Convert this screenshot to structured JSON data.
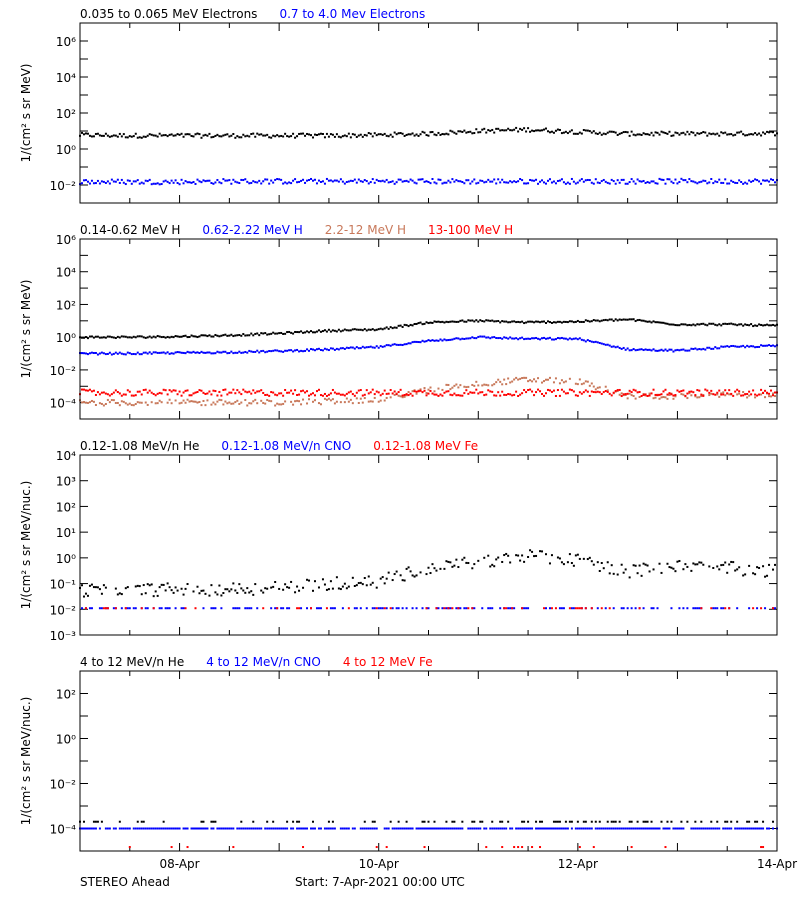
{
  "footer": {
    "left": "STEREO Ahead",
    "start": "Start:  7-Apr-2021 00:00 UTC"
  },
  "chart_data": [
    {
      "type": "scatter",
      "legend": [
        {
          "name": "0.035 to 0.065 MeV Electrons",
          "color": "#000000"
        },
        {
          "name": "0.7 to 4.0 Mev Electrons",
          "color": "#0000ff"
        }
      ],
      "ylabel": "1/(cm² s sr MeV)",
      "yscale": "log",
      "ylim": [
        0.001,
        10000000
      ],
      "ytick_labels": [
        "10⁶",
        "10⁴",
        "10²",
        "10⁰",
        "10⁻²"
      ],
      "xlim": [
        "2021-04-07 00:00",
        "2021-04-14 00:00"
      ],
      "x": [
        "2021-04-07 00:00",
        "2021-04-07 12:00",
        "2021-04-08 00:00",
        "2021-04-08 12:00",
        "2021-04-09 00:00",
        "2021-04-09 12:00",
        "2021-04-10 00:00",
        "2021-04-10 12:00",
        "2021-04-11 00:00",
        "2021-04-11 12:00",
        "2021-04-12 00:00",
        "2021-04-12 12:00",
        "2021-04-13 00:00",
        "2021-04-13 12:00",
        "2021-04-14 00:00"
      ],
      "series": [
        {
          "name": "0.035 to 0.065 MeV Electrons",
          "values": [
            6,
            5.5,
            5.5,
            5.5,
            5.5,
            5.5,
            6,
            7,
            10,
            12,
            9,
            7,
            7,
            7,
            7.5
          ]
        },
        {
          "name": "0.7 to 4.0 Mev Electrons",
          "values": [
            0.015,
            0.015,
            0.015,
            0.016,
            0.016,
            0.016,
            0.016,
            0.016,
            0.016,
            0.016,
            0.016,
            0.016,
            0.016,
            0.016,
            0.016
          ]
        }
      ]
    },
    {
      "type": "scatter",
      "legend": [
        {
          "name": "0.14-0.62 MeV H",
          "color": "#000000"
        },
        {
          "name": "0.62-2.22 MeV H",
          "color": "#0000ff"
        },
        {
          "name": "2.2-12 MeV H",
          "color": "#c8785a"
        },
        {
          "name": "13-100 MeV H",
          "color": "#ff0000"
        }
      ],
      "ylabel": "1/(cm² s sr MeV)",
      "yscale": "log",
      "ylim": [
        1e-05,
        1000000
      ],
      "ytick_labels": [
        "10⁶",
        "10⁴",
        "10²",
        "10⁰",
        "10⁻²",
        "10⁻⁴"
      ],
      "xlim": [
        "2021-04-07 00:00",
        "2021-04-14 00:00"
      ],
      "x": [
        "2021-04-07 00:00",
        "2021-04-07 12:00",
        "2021-04-08 00:00",
        "2021-04-08 12:00",
        "2021-04-09 00:00",
        "2021-04-09 12:00",
        "2021-04-10 00:00",
        "2021-04-10 12:00",
        "2021-04-11 00:00",
        "2021-04-11 12:00",
        "2021-04-12 00:00",
        "2021-04-12 12:00",
        "2021-04-13 00:00",
        "2021-04-13 12:00",
        "2021-04-14 00:00"
      ],
      "series": [
        {
          "name": "0.14-0.62 MeV H",
          "values": [
            1,
            1,
            1.1,
            1.3,
            1.7,
            2.5,
            3,
            8,
            10,
            8,
            9,
            12,
            6,
            6,
            5
          ]
        },
        {
          "name": "0.62-2.22 MeV H",
          "values": [
            0.1,
            0.1,
            0.11,
            0.12,
            0.14,
            0.18,
            0.25,
            0.6,
            1.0,
            0.8,
            0.8,
            0.18,
            0.15,
            0.25,
            0.3
          ]
        },
        {
          "name": "2.2-12 MeV H",
          "values": [
            0.0001,
            0.0001,
            0.0001,
            0.0001,
            0.0001,
            0.00012,
            0.00015,
            0.0006,
            0.0015,
            0.0025,
            0.002,
            0.00025,
            0.00025,
            0.0003,
            0.0003
          ]
        },
        {
          "name": "13-100 MeV H",
          "values": [
            0.0004,
            0.0004,
            0.0004,
            0.0004,
            0.0004,
            0.0004,
            0.0004,
            0.0004,
            0.0004,
            0.0004,
            0.0004,
            0.0004,
            0.0004,
            0.0004,
            0.0004
          ]
        }
      ]
    },
    {
      "type": "scatter",
      "legend": [
        {
          "name": "0.12-1.08 MeV/n He",
          "color": "#000000"
        },
        {
          "name": "0.12-1.08 MeV/n CNO",
          "color": "#0000ff"
        },
        {
          "name": "0.12-1.08 MeV Fe",
          "color": "#ff0000"
        }
      ],
      "ylabel": "1/(cm² s sr MeV/nuc.)",
      "yscale": "log",
      "ylim": [
        0.001,
        10000
      ],
      "ytick_labels": [
        "10⁴",
        "10³",
        "10²",
        "10¹",
        "10⁰",
        "10⁻¹",
        "10⁻²",
        "10⁻³"
      ],
      "xlim": [
        "2021-04-07 00:00",
        "2021-04-14 00:00"
      ],
      "x": [
        "2021-04-07 00:00",
        "2021-04-07 12:00",
        "2021-04-08 00:00",
        "2021-04-08 12:00",
        "2021-04-09 00:00",
        "2021-04-09 12:00",
        "2021-04-10 00:00",
        "2021-04-10 12:00",
        "2021-04-11 00:00",
        "2021-04-11 12:00",
        "2021-04-12 00:00",
        "2021-04-12 12:00",
        "2021-04-13 00:00",
        "2021-04-13 12:00",
        "2021-04-14 00:00"
      ],
      "series": [
        {
          "name": "0.12-1.08 MeV/n He",
          "values": [
            0.055,
            0.055,
            0.06,
            0.06,
            0.07,
            0.1,
            0.12,
            0.4,
            0.7,
            1.2,
            0.8,
            0.3,
            0.5,
            0.4,
            0.3
          ]
        },
        {
          "name": "0.12-1.08 MeV/n CNO",
          "values": [
            0.011,
            0.011,
            0.011,
            0.011,
            0.011,
            0.011,
            0.011,
            0.011,
            0.011,
            0.011,
            0.011,
            0.011,
            0.011,
            0.011,
            0.011
          ]
        },
        {
          "name": "0.12-1.08 MeV Fe",
          "values": [
            0.011,
            0.011,
            0.011,
            0.011,
            0.011,
            0.011,
            0.011,
            0.011,
            0.011,
            0.011,
            0.011,
            0.011,
            0.011,
            0.011,
            0.011
          ]
        }
      ]
    },
    {
      "type": "scatter",
      "legend": [
        {
          "name": "4 to 12 MeV/n He",
          "color": "#000000"
        },
        {
          "name": "4 to 12 MeV/n CNO",
          "color": "#0000ff"
        },
        {
          "name": "4 to 12 MeV Fe",
          "color": "#ff0000"
        }
      ],
      "ylabel": "1/(cm² s sr MeV/nuc.)",
      "yscale": "log",
      "ylim": [
        1e-05,
        1000
      ],
      "ytick_labels": [
        "10²",
        "10⁰",
        "10⁻²",
        "10⁻⁴"
      ],
      "xlim": [
        "2021-04-07 00:00",
        "2021-04-14 00:00"
      ],
      "x": [
        "2021-04-07 00:00",
        "2021-04-07 12:00",
        "2021-04-08 00:00",
        "2021-04-08 12:00",
        "2021-04-09 00:00",
        "2021-04-09 12:00",
        "2021-04-10 00:00",
        "2021-04-10 12:00",
        "2021-04-11 00:00",
        "2021-04-11 12:00",
        "2021-04-12 00:00",
        "2021-04-12 12:00",
        "2021-04-13 00:00",
        "2021-04-13 12:00",
        "2021-04-14 00:00"
      ],
      "series": [
        {
          "name": "4 to 12 MeV/n He",
          "values": [
            0.0002,
            0.0002,
            0.0002,
            0.0002,
            0.0002,
            0.0002,
            0.0002,
            0.0002,
            0.0002,
            0.0002,
            0.0002,
            0.0002,
            0.0002,
            0.0002,
            0.0002
          ]
        },
        {
          "name": "4 to 12 MeV/n CNO",
          "values": [
            0.0001,
            0.0001,
            0.0001,
            0.0001,
            0.0001,
            0.0001,
            0.0001,
            0.0001,
            0.0001,
            0.0001,
            0.0001,
            0.0001,
            0.0001,
            0.0001,
            0.0001
          ]
        },
        {
          "name": "4 to 12 MeV Fe",
          "values": [
            1.5e-05,
            1.5e-05,
            1.5e-05,
            1.5e-05,
            1.5e-05,
            1.5e-05,
            1.5e-05,
            1.5e-05,
            1.5e-05,
            1.5e-05,
            1.5e-05,
            1.5e-05,
            1.5e-05,
            1.5e-05,
            1.5e-05
          ]
        }
      ]
    }
  ],
  "xaxis": {
    "tick_labels": [
      "08-Apr",
      "10-Apr",
      "12-Apr",
      "14-Apr"
    ],
    "tick_dates": [
      "2021-04-08 00:00",
      "2021-04-10 00:00",
      "2021-04-12 00:00",
      "2021-04-14 00:00"
    ]
  }
}
